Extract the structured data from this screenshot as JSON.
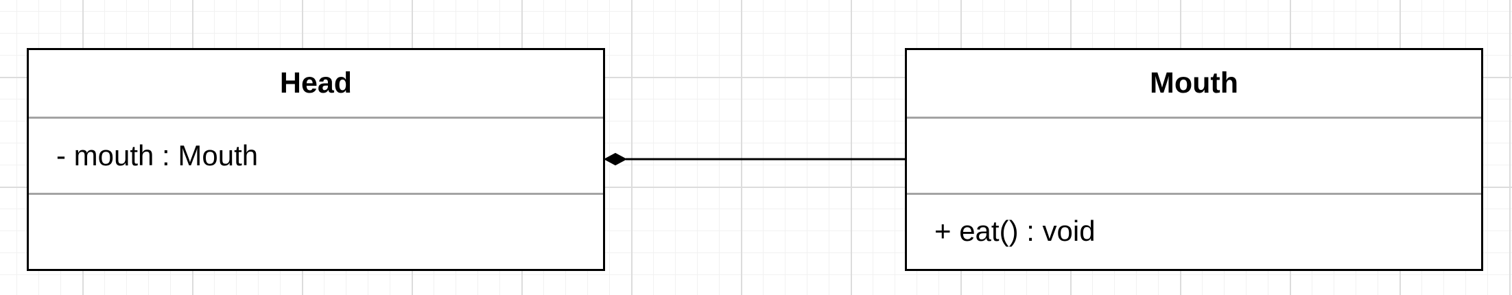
{
  "diagram": {
    "classes": [
      {
        "name": "Head",
        "attributes": "- mouth : Mouth",
        "operations": ""
      },
      {
        "name": "Mouth",
        "attributes": "",
        "operations": "+ eat() : void"
      }
    ],
    "relationship": {
      "type": "composition",
      "whole": "Head",
      "part": "Mouth"
    }
  }
}
